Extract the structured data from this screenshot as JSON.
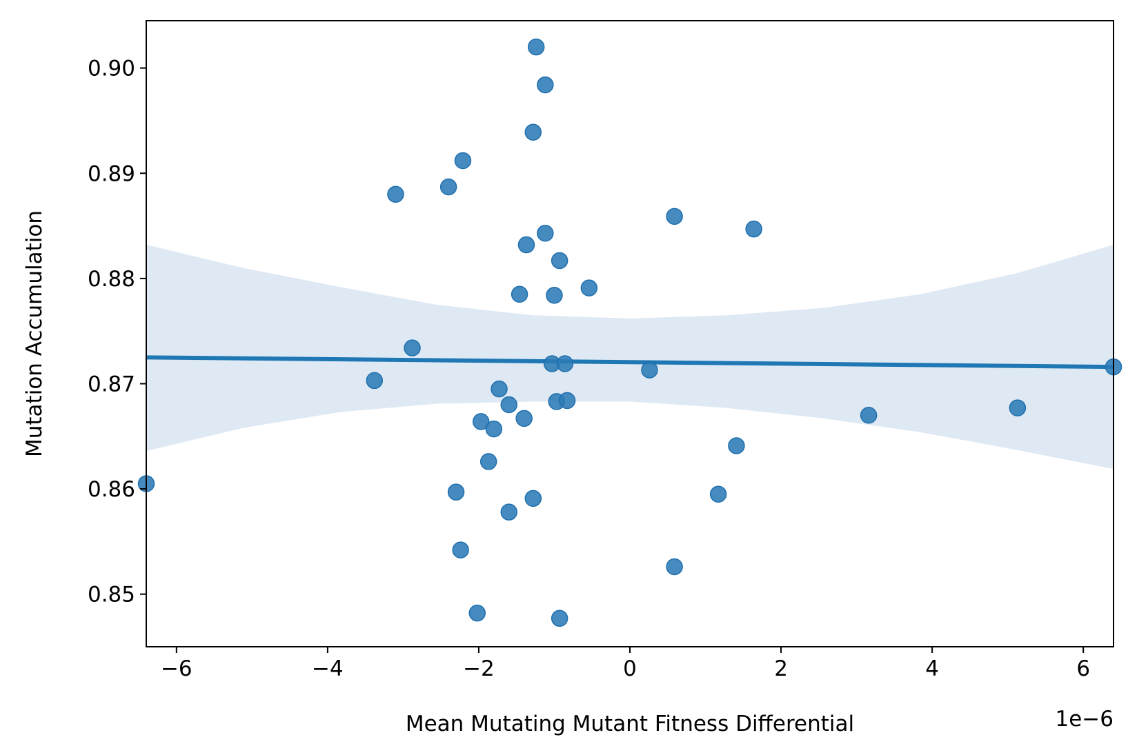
{
  "chart_data": {
    "type": "scatter",
    "title": "",
    "xlabel": "Mean Mutating Mutant Fitness Differential",
    "ylabel": "Mutation Accumulation",
    "x_offset_label": "1e−6",
    "xlim": [
      -6.4,
      6.4
    ],
    "ylim": [
      0.845,
      0.9045
    ],
    "x_ticks": [
      -6,
      -4,
      -2,
      0,
      2,
      4,
      6
    ],
    "x_tick_labels": [
      "−6",
      "−4",
      "−2",
      "0",
      "2",
      "4",
      "6"
    ],
    "y_ticks": [
      0.85,
      0.86,
      0.87,
      0.88,
      0.89,
      0.9
    ],
    "y_tick_labels": [
      "0.85",
      "0.86",
      "0.87",
      "0.88",
      "0.89",
      "0.90"
    ],
    "grid": false,
    "colors": {
      "points": "#2c7bb6",
      "line": "#1f77b4",
      "band": "#d6e4f1"
    },
    "points": [
      {
        "x": -1.24,
        "y": 0.902
      },
      {
        "x": -1.12,
        "y": 0.8984
      },
      {
        "x": -1.28,
        "y": 0.8939
      },
      {
        "x": -2.21,
        "y": 0.8912
      },
      {
        "x": -2.4,
        "y": 0.8887
      },
      {
        "x": -3.1,
        "y": 0.888
      },
      {
        "x": 0.59,
        "y": 0.8859
      },
      {
        "x": 1.64,
        "y": 0.8847
      },
      {
        "x": -1.12,
        "y": 0.8843
      },
      {
        "x": -1.37,
        "y": 0.8832
      },
      {
        "x": -0.93,
        "y": 0.8817
      },
      {
        "x": -0.54,
        "y": 0.8791
      },
      {
        "x": -1.46,
        "y": 0.8785
      },
      {
        "x": -1.0,
        "y": 0.8784
      },
      {
        "x": -2.88,
        "y": 0.8734
      },
      {
        "x": -1.03,
        "y": 0.8719
      },
      {
        "x": -0.86,
        "y": 0.8719
      },
      {
        "x": 0.26,
        "y": 0.8713
      },
      {
        "x": 6.4,
        "y": 0.8716
      },
      {
        "x": -3.38,
        "y": 0.8703
      },
      {
        "x": -1.73,
        "y": 0.8695
      },
      {
        "x": -0.97,
        "y": 0.8683
      },
      {
        "x": -0.83,
        "y": 0.8684
      },
      {
        "x": -1.6,
        "y": 0.868
      },
      {
        "x": 5.13,
        "y": 0.8677
      },
      {
        "x": 3.16,
        "y": 0.867
      },
      {
        "x": -1.4,
        "y": 0.8667
      },
      {
        "x": -1.97,
        "y": 0.8664
      },
      {
        "x": -1.8,
        "y": 0.8657
      },
      {
        "x": 1.41,
        "y": 0.8641
      },
      {
        "x": -1.87,
        "y": 0.8626
      },
      {
        "x": -6.4,
        "y": 0.8605
      },
      {
        "x": -2.3,
        "y": 0.8597
      },
      {
        "x": 1.17,
        "y": 0.8595
      },
      {
        "x": -1.28,
        "y": 0.8591
      },
      {
        "x": -1.6,
        "y": 0.8578
      },
      {
        "x": -2.24,
        "y": 0.8542
      },
      {
        "x": 0.59,
        "y": 0.8526
      },
      {
        "x": -2.02,
        "y": 0.8482
      },
      {
        "x": -0.93,
        "y": 0.8477
      }
    ],
    "regression": {
      "x": [
        -6.4,
        6.4
      ],
      "y": [
        0.8725,
        0.8716
      ]
    },
    "confidence_band": {
      "x": [
        -6.4,
        -5.12,
        -3.84,
        -2.56,
        -1.28,
        0.0,
        1.28,
        2.56,
        3.84,
        5.12,
        6.4
      ],
      "upper": [
        0.8832,
        0.881,
        0.8792,
        0.8775,
        0.8765,
        0.8762,
        0.8765,
        0.8772,
        0.8785,
        0.8805,
        0.8832
      ],
      "lower": [
        0.8636,
        0.8658,
        0.8673,
        0.8681,
        0.8683,
        0.8683,
        0.8677,
        0.8667,
        0.8654,
        0.8637,
        0.8619
      ]
    }
  }
}
